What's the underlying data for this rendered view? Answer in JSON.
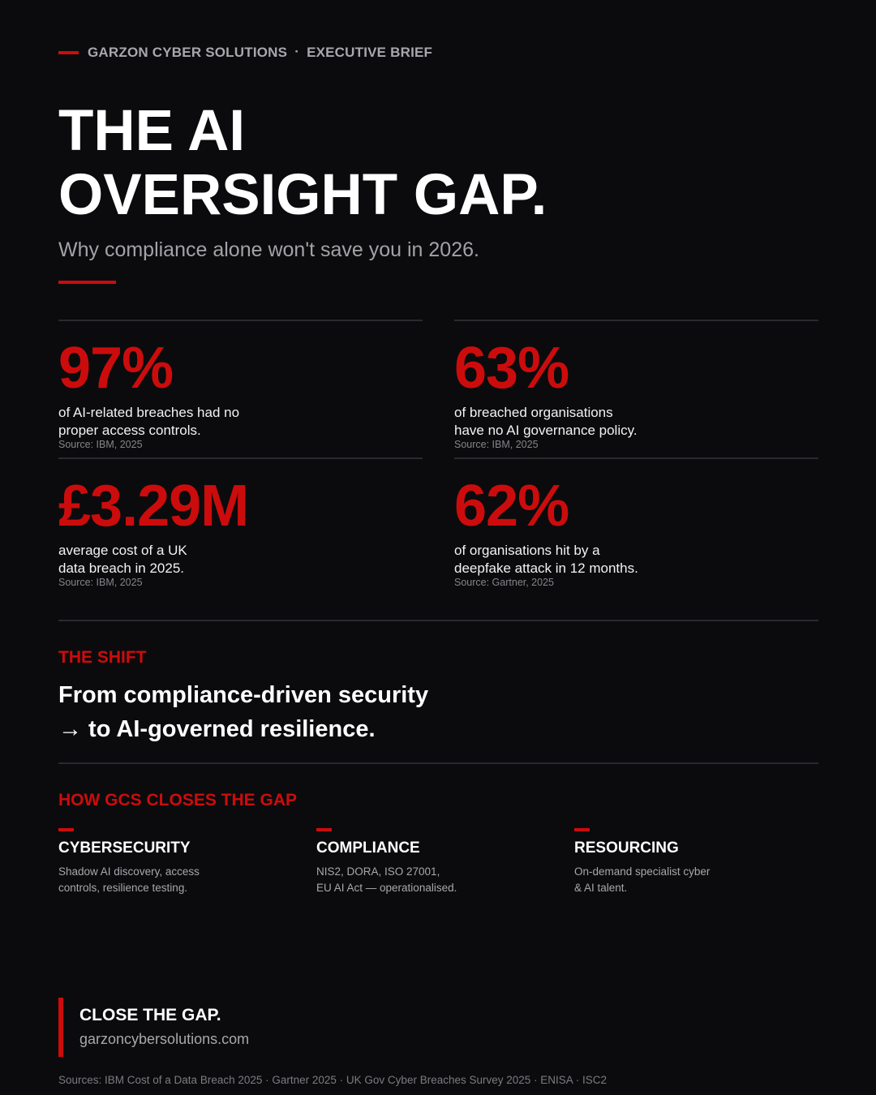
{
  "header": {
    "company": "GARZON CYBER SOLUTIONS",
    "separator": "·",
    "label": "EXECUTIVE BRIEF"
  },
  "hero": {
    "title_line1": "THE AI",
    "title_line2": "OVERSIGHT GAP.",
    "subtitle": "Why compliance alone won't save you in 2026."
  },
  "stats": [
    {
      "value": "97%",
      "description": "of AI-related breaches had no\nproper access controls.",
      "source": "Source: IBM, 2025"
    },
    {
      "value": "63%",
      "description": "of breached organisations\nhave no AI governance policy.",
      "source": "Source: IBM, 2025"
    },
    {
      "value": "£3.29M",
      "description": "average cost of a UK\ndata breach in 2025.",
      "source": "Source: IBM, 2025"
    },
    {
      "value": "62%",
      "description": "of organisations hit by a\ndeepfake attack in 12 months.",
      "source": "Source: Gartner, 2025"
    }
  ],
  "shift": {
    "label": "THE SHIFT",
    "line1": "From compliance-driven security",
    "line2": "→ to AI-governed resilience."
  },
  "services": {
    "label": "HOW GCS CLOSES THE GAP",
    "items": [
      {
        "name": "CYBERSECURITY",
        "text": "Shadow AI discovery, access\ncontrols, resilience testing."
      },
      {
        "name": "COMPLIANCE",
        "text": "NIS2, DORA, ISO 27001,\nEU AI Act — operationalised."
      },
      {
        "name": "RESOURCING",
        "text": "On-demand specialist cyber\n& AI talent."
      }
    ]
  },
  "cta": {
    "heading": "CLOSE THE GAP.",
    "url": "garzoncybersolutions.com"
  },
  "footer": {
    "sources": "Sources: IBM Cost of a Data Breach 2025 · Gartner 2025 · UK Gov Cyber Breaches Survey 2025 · ENISA · ISC2"
  },
  "colors": {
    "background": "#0b0b0d",
    "accent": "#cc0c0c",
    "text": "#ffffff",
    "muted": "#a8a8ac"
  }
}
